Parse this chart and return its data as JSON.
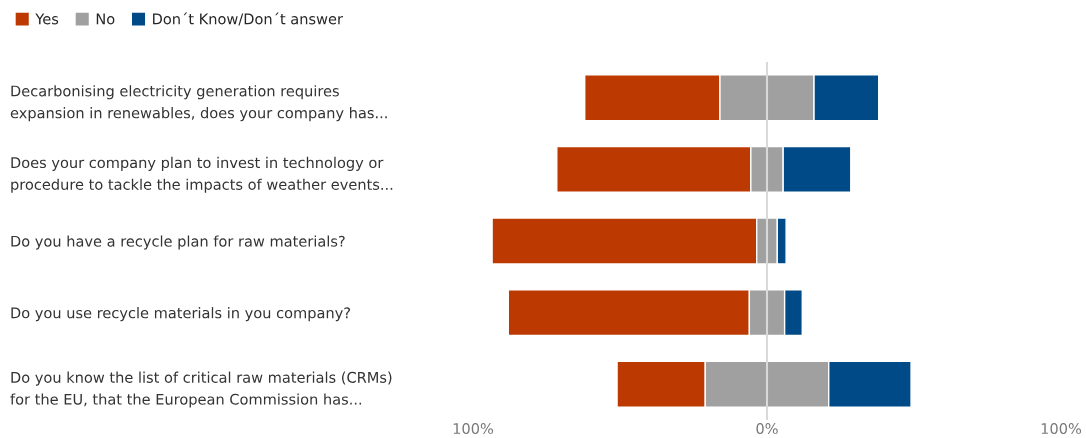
{
  "chart_data": {
    "type": "bar",
    "orientation": "horizontal",
    "categories": [
      "Decarbonising electricity generation requires\nexpansion in renewables, does your company has...",
      "Does your company plan to invest in technology or\nprocedure to tackle the impacts of weather events...",
      "Do you have a recycle plan for raw materials?",
      "Do you use recycle materials in you company?",
      "Do you know the list of critical raw materials (CRMs)\nfor the EU, that the European Commission has..."
    ],
    "series": [
      {
        "name": "Yes",
        "color": "#bc3a02",
        "base": [
          -62,
          -71.5,
          -93.5,
          -88,
          -51
        ],
        "values": [
          46,
          66,
          90,
          82,
          30
        ]
      },
      {
        "name": "No",
        "color": "#a0a0a0",
        "base": [
          -16,
          -5.5,
          -3.5,
          -6,
          -21
        ],
        "values": [
          32,
          11,
          7,
          12,
          42
        ]
      },
      {
        "name": "Don´t Know/Don´t answer",
        "color": "#004a87",
        "base": [
          16,
          5.5,
          3.5,
          6,
          21
        ],
        "values": [
          22,
          23,
          3,
          6,
          28
        ]
      }
    ],
    "xlim": [
      -100,
      100
    ],
    "xticks": [
      {
        "value": -100,
        "label": "100%"
      },
      {
        "value": 0,
        "label": "0%"
      },
      {
        "value": 100,
        "label": "100%"
      }
    ],
    "ref_lines": [
      {
        "axis": "x",
        "value": 0,
        "color": "#d9d9d9"
      }
    ],
    "legend": "top left",
    "grid": false
  }
}
